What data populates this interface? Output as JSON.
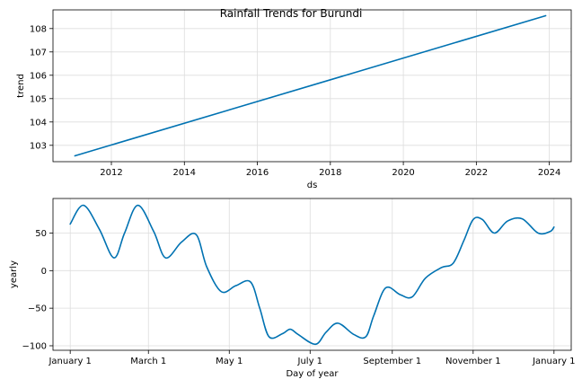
{
  "chart_data": [
    {
      "type": "line",
      "title": "Rainfall Trends for Burundi",
      "xlabel": "ds",
      "ylabel": "trend",
      "grid": true,
      "color": "#0072b2",
      "xlim": [
        2010.4,
        2024.6
      ],
      "ylim": [
        102.3,
        108.8
      ],
      "xticks": [
        2012,
        2014,
        2016,
        2018,
        2020,
        2022,
        2024
      ],
      "xtick_labels": [
        "2012",
        "2014",
        "2016",
        "2018",
        "2020",
        "2022",
        "2024"
      ],
      "yticks": [
        103,
        104,
        105,
        106,
        107,
        108
      ],
      "ytick_labels": [
        "103",
        "104",
        "105",
        "106",
        "107",
        "108"
      ],
      "series": [
        {
          "x": [
            2011.0,
            2023.9
          ],
          "y": [
            102.55,
            108.55
          ]
        }
      ]
    },
    {
      "type": "line",
      "xlabel": "Day of year",
      "ylabel": "yearly",
      "grid": true,
      "color": "#0072b2",
      "xlim": [
        -13,
        378
      ],
      "ylim": [
        -106,
        96
      ],
      "xticks": [
        0,
        59,
        120,
        181,
        243,
        304,
        365
      ],
      "xtick_labels": [
        "January 1",
        "March 1",
        "May 1",
        "July 1",
        "September 1",
        "November 1",
        "January 1"
      ],
      "yticks": [
        -100,
        -50,
        0,
        50
      ],
      "ytick_labels": [
        "−100",
        "−50",
        "0",
        "50"
      ],
      "series": [
        {
          "x": [
            0,
            10,
            22,
            33,
            41,
            51,
            63,
            72,
            84,
            95,
            103,
            114,
            125,
            136,
            143,
            150,
            160,
            166,
            172,
            185,
            193,
            202,
            214,
            223,
            229,
            238,
            249,
            258,
            268,
            280,
            289,
            297,
            304,
            311,
            320,
            330,
            341,
            353,
            362,
            365
          ],
          "y": [
            62,
            87,
            55,
            17,
            50,
            87,
            52,
            17,
            38,
            48,
            5,
            -28,
            -20,
            -15,
            -50,
            -88,
            -84,
            -78,
            -85,
            -98,
            -82,
            -70,
            -85,
            -88,
            -60,
            -23,
            -32,
            -35,
            -10,
            4,
            10,
            40,
            68,
            68,
            50,
            66,
            69,
            50,
            52,
            58
          ]
        }
      ]
    }
  ]
}
